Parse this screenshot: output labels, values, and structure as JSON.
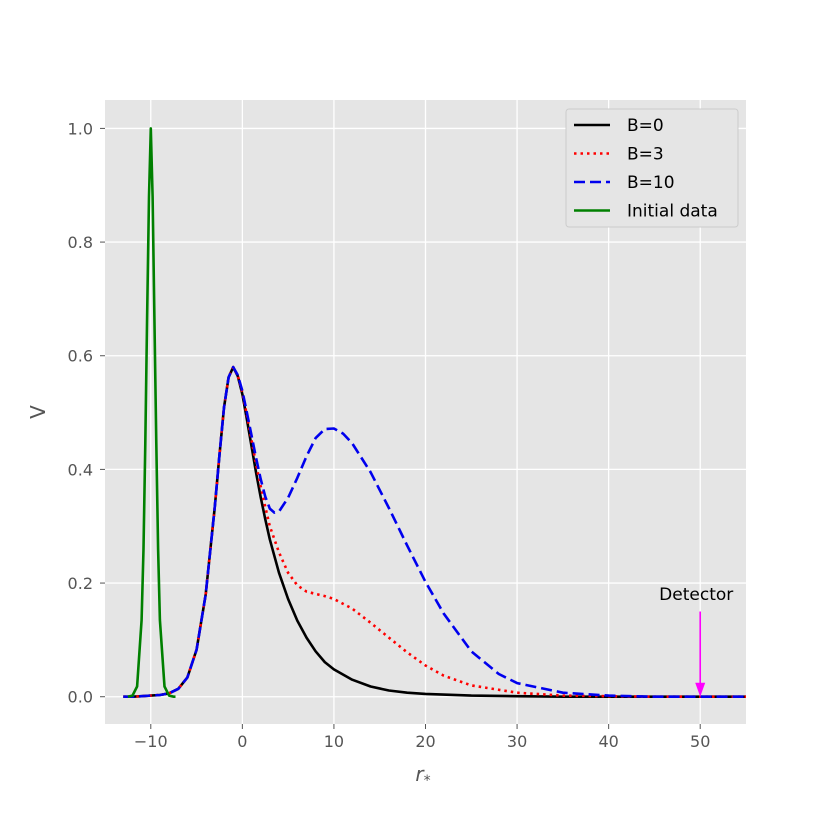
{
  "chart_data": {
    "type": "line",
    "title": "",
    "xlabel": "r",
    "xlabel_subscript": "*",
    "ylabel": "V",
    "xlim": [
      -15,
      55
    ],
    "ylim": [
      -0.048,
      1.05
    ],
    "xticks": [
      -10,
      0,
      10,
      20,
      30,
      40,
      50
    ],
    "xtick_labels": [
      "−10",
      "0",
      "10",
      "20",
      "30",
      "40",
      "50"
    ],
    "yticks": [
      0.0,
      0.2,
      0.4,
      0.6,
      0.8,
      1.0
    ],
    "ytick_labels": [
      "0.0",
      "0.2",
      "0.4",
      "0.6",
      "0.8",
      "1.0"
    ],
    "grid": true,
    "legend_position": "top-right",
    "series": [
      {
        "name": "B=0",
        "color": "#000000",
        "style": "solid",
        "x": [
          -13,
          -12,
          -11,
          -10,
          -9,
          -8,
          -7,
          -6,
          -5,
          -4,
          -3,
          -2.5,
          -2,
          -1.5,
          -1,
          -0.5,
          0,
          0.5,
          1,
          1.5,
          2,
          2.5,
          3,
          4,
          5,
          6,
          7,
          8,
          9,
          10,
          12,
          14,
          16,
          18,
          20,
          25,
          30,
          35,
          40,
          45,
          50,
          55
        ],
        "y": [
          0.0,
          0.0,
          0.001,
          0.002,
          0.003,
          0.006,
          0.014,
          0.034,
          0.083,
          0.18,
          0.336,
          0.426,
          0.509,
          0.562,
          0.58,
          0.564,
          0.532,
          0.488,
          0.441,
          0.394,
          0.351,
          0.312,
          0.277,
          0.218,
          0.172,
          0.134,
          0.104,
          0.08,
          0.061,
          0.048,
          0.03,
          0.018,
          0.011,
          0.007,
          0.005,
          0.002,
          0.001,
          0.0,
          0.0,
          0.0,
          0.0,
          0.0
        ]
      },
      {
        "name": "B=3",
        "color": "#ff0000",
        "style": "dotted",
        "x": [
          -13,
          -12,
          -11,
          -10,
          -9,
          -8,
          -7,
          -6,
          -5,
          -4,
          -3,
          -2.5,
          -2,
          -1.5,
          -1,
          -0.5,
          0,
          0.5,
          1,
          1.5,
          2,
          2.5,
          3,
          4,
          5,
          6,
          7,
          8,
          9,
          10,
          12,
          14,
          16,
          18,
          20,
          22,
          25,
          30,
          35,
          40,
          45,
          50,
          55
        ],
        "y": [
          0.0,
          0.0,
          0.001,
          0.002,
          0.003,
          0.006,
          0.014,
          0.034,
          0.083,
          0.18,
          0.336,
          0.426,
          0.509,
          0.562,
          0.58,
          0.565,
          0.535,
          0.495,
          0.452,
          0.409,
          0.37,
          0.334,
          0.3,
          0.254,
          0.218,
          0.196,
          0.185,
          0.181,
          0.177,
          0.172,
          0.155,
          0.13,
          0.104,
          0.078,
          0.055,
          0.037,
          0.02,
          0.007,
          0.002,
          0.001,
          0.0,
          0.0,
          0.0
        ]
      },
      {
        "name": "B=10",
        "color": "#0000ee",
        "style": "dashed",
        "x": [
          -13,
          -12,
          -11,
          -10,
          -9,
          -8,
          -7,
          -6,
          -5,
          -4,
          -3,
          -2.5,
          -2,
          -1.5,
          -1,
          -0.5,
          0,
          0.5,
          1,
          1.5,
          2,
          2.5,
          3,
          3.5,
          4,
          5,
          6,
          7,
          8,
          9,
          10,
          11,
          12,
          14,
          16,
          18,
          20,
          22,
          25,
          28,
          30,
          35,
          40,
          45,
          50,
          55
        ],
        "y": [
          0.0,
          0.0,
          0.001,
          0.002,
          0.003,
          0.006,
          0.014,
          0.034,
          0.083,
          0.18,
          0.336,
          0.426,
          0.509,
          0.562,
          0.58,
          0.566,
          0.538,
          0.5,
          0.46,
          0.42,
          0.383,
          0.352,
          0.331,
          0.324,
          0.326,
          0.35,
          0.385,
          0.423,
          0.455,
          0.471,
          0.472,
          0.463,
          0.446,
          0.395,
          0.332,
          0.266,
          0.202,
          0.146,
          0.08,
          0.04,
          0.024,
          0.007,
          0.002,
          0.0,
          0.0,
          0.0
        ]
      },
      {
        "name": "Initial data",
        "color": "#008000",
        "style": "solid",
        "x": [
          -12.5,
          -12,
          -11.5,
          -11,
          -10.8,
          -10.6,
          -10.4,
          -10.2,
          -10,
          -9.8,
          -9.6,
          -9.4,
          -9.2,
          -9,
          -8.5,
          -8,
          -7.5,
          -7.3
        ],
        "y": [
          0.0,
          0.002,
          0.018,
          0.135,
          0.26,
          0.446,
          0.667,
          0.88,
          1.0,
          0.88,
          0.667,
          0.446,
          0.26,
          0.135,
          0.018,
          0.002,
          0.0,
          0.0
        ]
      }
    ],
    "annotations": [
      {
        "text": "Detector",
        "x": 50,
        "y": 0.0,
        "color": "#ff00ff"
      }
    ]
  }
}
